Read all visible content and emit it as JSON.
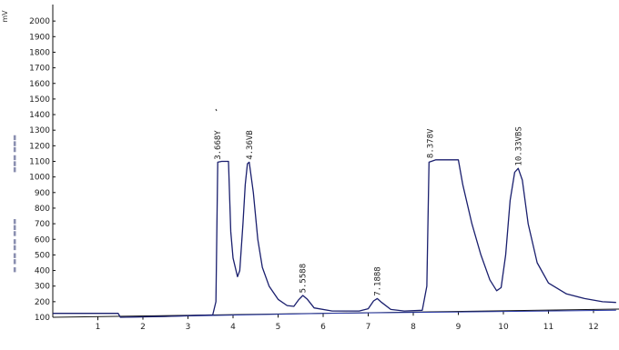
{
  "chart_data": {
    "type": "line",
    "title": "",
    "xlabel": "",
    "ylabel": "mV",
    "xlim": [
      0,
      12.5
    ],
    "ylim": [
      100,
      2050
    ],
    "x_ticks": [
      "1",
      "2",
      "3",
      "4",
      "5",
      "6",
      "7",
      "8",
      "9",
      "10",
      "11",
      "12"
    ],
    "y_ticks": [
      "100",
      "200",
      "300",
      "400",
      "500",
      "600",
      "700",
      "800",
      "900",
      "1000",
      "1100",
      "1200",
      "1300",
      "1400",
      "1500",
      "1600",
      "1700",
      "1800",
      "1900",
      "2000"
    ],
    "grid": false,
    "series": [
      {
        "points": [
          [
            0.0,
            125
          ],
          [
            1.45,
            125
          ],
          [
            1.5,
            100
          ],
          [
            2.5,
            105
          ],
          [
            3.2,
            112
          ],
          [
            3.55,
            115
          ],
          [
            3.62,
            200
          ],
          [
            3.66,
            1095
          ],
          [
            3.75,
            1100
          ],
          [
            3.9,
            1100
          ],
          [
            3.95,
            650
          ],
          [
            4.0,
            480
          ],
          [
            4.1,
            360
          ],
          [
            4.15,
            400
          ],
          [
            4.22,
            700
          ],
          [
            4.27,
            950
          ],
          [
            4.32,
            1085
          ],
          [
            4.36,
            1095
          ],
          [
            4.45,
            900
          ],
          [
            4.55,
            600
          ],
          [
            4.65,
            420
          ],
          [
            4.8,
            300
          ],
          [
            5.0,
            215
          ],
          [
            5.2,
            175
          ],
          [
            5.35,
            170
          ],
          [
            5.45,
            210
          ],
          [
            5.55,
            240
          ],
          [
            5.65,
            215
          ],
          [
            5.8,
            160
          ],
          [
            6.2,
            140
          ],
          [
            6.8,
            140
          ],
          [
            7.0,
            155
          ],
          [
            7.12,
            205
          ],
          [
            7.2,
            220
          ],
          [
            7.3,
            195
          ],
          [
            7.5,
            150
          ],
          [
            7.8,
            140
          ],
          [
            8.2,
            145
          ],
          [
            8.3,
            300
          ],
          [
            8.35,
            1095
          ],
          [
            8.5,
            1110
          ],
          [
            9.0,
            1110
          ],
          [
            9.1,
            950
          ],
          [
            9.3,
            700
          ],
          [
            9.5,
            500
          ],
          [
            9.7,
            340
          ],
          [
            9.85,
            270
          ],
          [
            9.95,
            290
          ],
          [
            10.05,
            500
          ],
          [
            10.15,
            850
          ],
          [
            10.25,
            1030
          ],
          [
            10.33,
            1055
          ],
          [
            10.42,
            980
          ],
          [
            10.55,
            700
          ],
          [
            10.75,
            450
          ],
          [
            11.0,
            320
          ],
          [
            11.4,
            250
          ],
          [
            11.8,
            220
          ],
          [
            12.2,
            200
          ],
          [
            12.5,
            195
          ]
        ]
      }
    ],
    "baseline": [
      [
        1.5,
        100
      ],
      [
        6.0,
        125
      ],
      [
        12.5,
        145
      ]
    ],
    "peak_labels": [
      {
        "x": 3.66,
        "y": 1110,
        "text": "3.668Y"
      },
      {
        "x": 4.36,
        "y": 1110,
        "text": "4.36VB"
      },
      {
        "x": 5.55,
        "y": 255,
        "text": "5.5588"
      },
      {
        "x": 7.2,
        "y": 235,
        "text": "7.1888"
      },
      {
        "x": 8.37,
        "y": 1120,
        "text": "8.378V"
      },
      {
        "x": 10.33,
        "y": 1070,
        "text": "10.33VBS"
      }
    ]
  }
}
